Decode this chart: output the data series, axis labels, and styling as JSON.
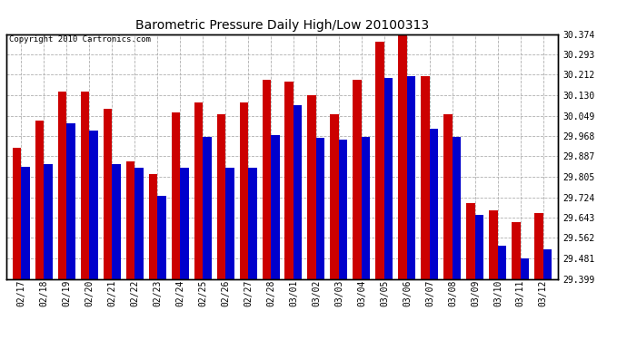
{
  "title": "Barometric Pressure Daily High/Low 20100313",
  "copyright_text": "Copyright 2010 Cartronics.com",
  "dates": [
    "02/17",
    "02/18",
    "02/19",
    "02/20",
    "02/21",
    "02/22",
    "02/23",
    "02/24",
    "02/25",
    "02/26",
    "02/27",
    "02/28",
    "03/01",
    "03/02",
    "03/03",
    "03/04",
    "03/05",
    "03/06",
    "03/07",
    "03/08",
    "03/09",
    "03/10",
    "03/11",
    "03/12"
  ],
  "highs": [
    29.92,
    30.03,
    30.145,
    30.145,
    30.075,
    29.865,
    29.815,
    30.06,
    30.1,
    30.055,
    30.1,
    30.19,
    30.185,
    30.13,
    30.055,
    30.19,
    30.345,
    30.374,
    30.205,
    30.055,
    29.7,
    29.67,
    29.625,
    29.66
  ],
  "lows": [
    29.845,
    29.855,
    30.02,
    29.99,
    29.855,
    29.84,
    29.73,
    29.84,
    29.965,
    29.84,
    29.84,
    29.97,
    30.09,
    29.96,
    29.955,
    29.965,
    30.2,
    30.205,
    29.995,
    29.965,
    29.655,
    29.53,
    29.48,
    29.515
  ],
  "high_color": "#cc0000",
  "low_color": "#0000cc",
  "background_color": "#ffffff",
  "grid_color": "#b0b0b0",
  "ymin": 29.399,
  "ymax": 30.374,
  "yticks": [
    29.399,
    29.481,
    29.562,
    29.643,
    29.724,
    29.805,
    29.887,
    29.968,
    30.049,
    30.13,
    30.212,
    30.293,
    30.374
  ],
  "title_fontsize": 10,
  "tick_fontsize": 7,
  "copyright_fontsize": 6.5,
  "bar_width": 0.38
}
